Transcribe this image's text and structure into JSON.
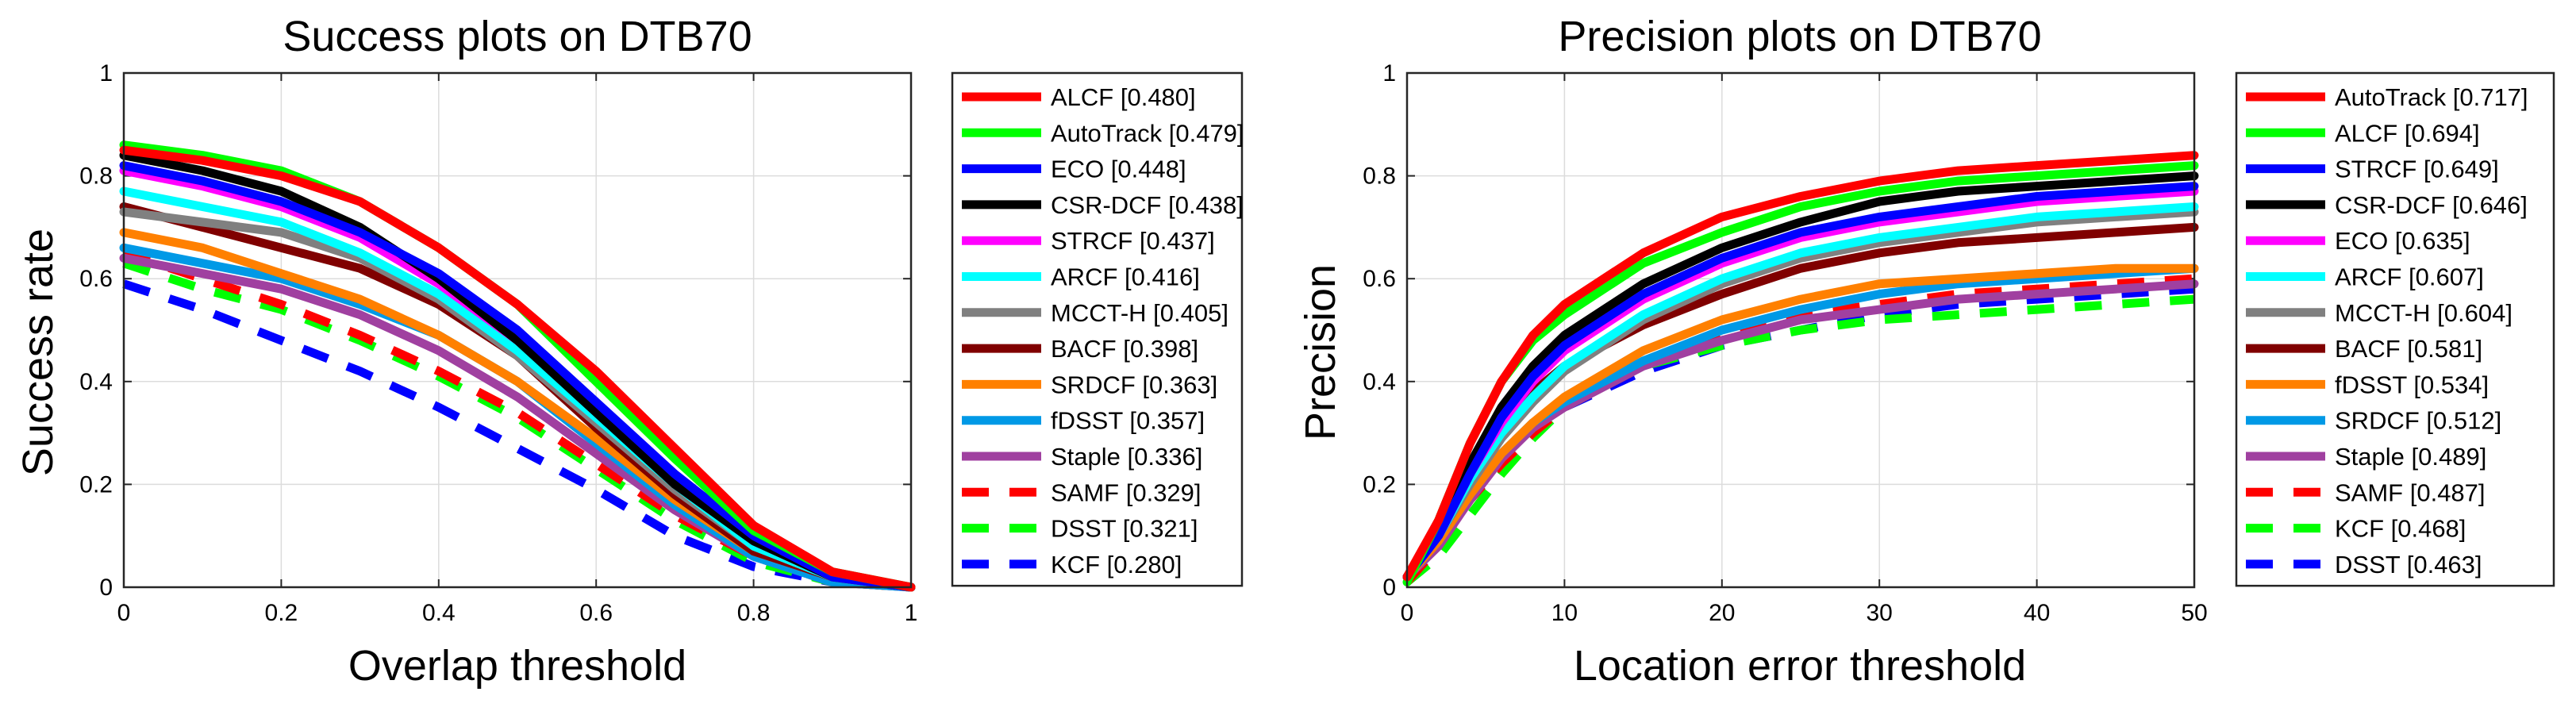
{
  "chart_data": [
    {
      "type": "line",
      "title": "Success plots on DTB70",
      "xlabel": "Overlap threshold",
      "ylabel": "Success rate",
      "xlim": [
        0,
        1
      ],
      "ylim": [
        0,
        1
      ],
      "xticks": [
        0,
        0.2,
        0.4,
        0.6,
        0.8,
        1
      ],
      "xtick_labels": [
        "0",
        "0.2",
        "0.4",
        "0.6",
        "0.8",
        "1"
      ],
      "yticks": [
        0,
        0.2,
        0.4,
        0.6,
        0.8,
        1
      ],
      "ytick_labels": [
        "0",
        "0.2",
        "0.4",
        "0.6",
        "0.8",
        "1"
      ],
      "grid": true,
      "legend_position": "outside-right",
      "x": [
        0,
        0.1,
        0.2,
        0.3,
        0.4,
        0.5,
        0.6,
        0.7,
        0.8,
        0.9,
        1.0
      ],
      "series": [
        {
          "name": "ALCF",
          "score": "0.480",
          "label": "ALCF [0.480]",
          "color": "#ff0000",
          "dash": "solid",
          "values": [
            0.85,
            0.83,
            0.8,
            0.75,
            0.66,
            0.55,
            0.42,
            0.27,
            0.12,
            0.03,
            0.0
          ]
        },
        {
          "name": "AutoTrack",
          "score": "0.479",
          "label": "AutoTrack [0.479]",
          "color": "#00ff00",
          "dash": "solid",
          "values": [
            0.86,
            0.84,
            0.81,
            0.75,
            0.66,
            0.55,
            0.4,
            0.25,
            0.11,
            0.03,
            0.0
          ]
        },
        {
          "name": "ECO",
          "score": "0.448",
          "label": "ECO [0.448]",
          "color": "#0000ff",
          "dash": "solid",
          "values": [
            0.82,
            0.79,
            0.75,
            0.69,
            0.61,
            0.5,
            0.36,
            0.22,
            0.1,
            0.02,
            0.0
          ]
        },
        {
          "name": "CSR-DCF",
          "score": "0.438",
          "label": "CSR-DCF [0.438]",
          "color": "#000000",
          "dash": "solid",
          "values": [
            0.84,
            0.81,
            0.77,
            0.7,
            0.6,
            0.48,
            0.34,
            0.2,
            0.09,
            0.02,
            0.0
          ]
        },
        {
          "name": "STRCF",
          "score": "0.437",
          "label": "STRCF [0.437]",
          "color": "#ff00ff",
          "dash": "solid",
          "values": [
            0.81,
            0.78,
            0.74,
            0.68,
            0.59,
            0.48,
            0.35,
            0.21,
            0.09,
            0.02,
            0.0
          ]
        },
        {
          "name": "ARCF",
          "score": "0.416",
          "label": "ARCF [0.416]",
          "color": "#00ffff",
          "dash": "solid",
          "values": [
            0.77,
            0.74,
            0.71,
            0.65,
            0.57,
            0.46,
            0.33,
            0.2,
            0.08,
            0.02,
            0.0
          ]
        },
        {
          "name": "MCCT-H",
          "score": "0.405",
          "label": "MCCT-H [0.405]",
          "color": "#808080",
          "dash": "solid",
          "values": [
            0.73,
            0.71,
            0.69,
            0.64,
            0.56,
            0.45,
            0.32,
            0.19,
            0.08,
            0.02,
            0.0
          ]
        },
        {
          "name": "BACF",
          "score": "0.398",
          "label": "BACF [0.398]",
          "color": "#800000",
          "dash": "solid",
          "values": [
            0.74,
            0.7,
            0.66,
            0.62,
            0.55,
            0.45,
            0.31,
            0.18,
            0.07,
            0.02,
            0.0
          ]
        },
        {
          "name": "SRDCF",
          "score": "0.363",
          "label": "SRDCF [0.363]",
          "color": "#ff8000",
          "dash": "solid",
          "values": [
            0.69,
            0.66,
            0.61,
            0.56,
            0.49,
            0.4,
            0.29,
            0.17,
            0.07,
            0.02,
            0.0
          ]
        },
        {
          "name": "fDSST",
          "score": "0.357",
          "label": "fDSST [0.357]",
          "color": "#0099e6",
          "dash": "solid",
          "values": [
            0.66,
            0.63,
            0.6,
            0.55,
            0.49,
            0.4,
            0.28,
            0.16,
            0.06,
            0.01,
            0.0
          ]
        },
        {
          "name": "Staple",
          "score": "0.336",
          "label": "Staple [0.336]",
          "color": "#a040a0",
          "dash": "solid",
          "values": [
            0.64,
            0.61,
            0.58,
            0.53,
            0.46,
            0.37,
            0.26,
            0.15,
            0.06,
            0.01,
            0.0
          ]
        },
        {
          "name": "SAMF",
          "score": "0.329",
          "label": "SAMF [0.329]",
          "color": "#ff0000",
          "dash": "dashed",
          "values": [
            0.65,
            0.6,
            0.55,
            0.49,
            0.42,
            0.34,
            0.24,
            0.14,
            0.06,
            0.01,
            0.0
          ]
        },
        {
          "name": "DSST",
          "score": "0.321",
          "label": "DSST [0.321]",
          "color": "#00ff00",
          "dash": "dashed",
          "values": [
            0.63,
            0.58,
            0.54,
            0.48,
            0.41,
            0.33,
            0.23,
            0.13,
            0.05,
            0.01,
            0.0
          ]
        },
        {
          "name": "KCF",
          "score": "0.280",
          "label": "KCF [0.280]",
          "color": "#0000ff",
          "dash": "dashed",
          "values": [
            0.59,
            0.54,
            0.48,
            0.42,
            0.35,
            0.27,
            0.19,
            0.1,
            0.04,
            0.01,
            0.0
          ]
        }
      ]
    },
    {
      "type": "line",
      "title": "Precision plots on DTB70",
      "xlabel": "Location error threshold",
      "ylabel": "Precision",
      "xlim": [
        0,
        50
      ],
      "ylim": [
        0,
        1
      ],
      "xticks": [
        0,
        10,
        20,
        30,
        40,
        50
      ],
      "xtick_labels": [
        "0",
        "10",
        "20",
        "30",
        "40",
        "50"
      ],
      "yticks": [
        0,
        0.2,
        0.4,
        0.6,
        0.8,
        1
      ],
      "ytick_labels": [
        "0",
        "0.2",
        "0.4",
        "0.6",
        "0.8",
        "1"
      ],
      "grid": true,
      "legend_position": "outside-right",
      "x": [
        0,
        2,
        4,
        6,
        8,
        10,
        15,
        20,
        25,
        30,
        35,
        40,
        45,
        50
      ],
      "series": [
        {
          "name": "AutoTrack",
          "score": "0.717",
          "label": "AutoTrack [0.717]",
          "color": "#ff0000",
          "dash": "solid",
          "values": [
            0.02,
            0.13,
            0.28,
            0.4,
            0.49,
            0.55,
            0.65,
            0.72,
            0.76,
            0.79,
            0.81,
            0.82,
            0.83,
            0.84
          ]
        },
        {
          "name": "ALCF",
          "score": "0.694",
          "label": "ALCF [0.694]",
          "color": "#00ff00",
          "dash": "solid",
          "values": [
            0.01,
            0.13,
            0.28,
            0.4,
            0.48,
            0.53,
            0.63,
            0.69,
            0.74,
            0.77,
            0.79,
            0.8,
            0.81,
            0.82
          ]
        },
        {
          "name": "STRCF",
          "score": "0.649",
          "label": "STRCF [0.649]",
          "color": "#0000ff",
          "dash": "solid",
          "values": [
            0.02,
            0.1,
            0.22,
            0.33,
            0.41,
            0.47,
            0.57,
            0.64,
            0.69,
            0.72,
            0.74,
            0.76,
            0.77,
            0.78
          ]
        },
        {
          "name": "CSR-DCF",
          "score": "0.646",
          "label": "CSR-DCF [0.646]",
          "color": "#000000",
          "dash": "solid",
          "values": [
            0.02,
            0.11,
            0.24,
            0.35,
            0.43,
            0.49,
            0.59,
            0.66,
            0.71,
            0.75,
            0.77,
            0.78,
            0.79,
            0.8
          ]
        },
        {
          "name": "ECO",
          "score": "0.635",
          "label": "ECO [0.635]",
          "color": "#ff00ff",
          "dash": "solid",
          "values": [
            0.02,
            0.1,
            0.22,
            0.32,
            0.4,
            0.46,
            0.56,
            0.63,
            0.68,
            0.71,
            0.73,
            0.75,
            0.76,
            0.77
          ]
        },
        {
          "name": "ARCF",
          "score": "0.607",
          "label": "ARCF [0.607]",
          "color": "#00ffff",
          "dash": "solid",
          "values": [
            0.02,
            0.1,
            0.21,
            0.3,
            0.37,
            0.43,
            0.53,
            0.6,
            0.65,
            0.68,
            0.7,
            0.72,
            0.73,
            0.74
          ]
        },
        {
          "name": "MCCT-H",
          "score": "0.604",
          "label": "MCCT-H [0.604]",
          "color": "#808080",
          "dash": "solid",
          "values": [
            0.02,
            0.1,
            0.2,
            0.29,
            0.36,
            0.42,
            0.52,
            0.59,
            0.64,
            0.67,
            0.69,
            0.71,
            0.72,
            0.73
          ]
        },
        {
          "name": "BACF",
          "score": "0.581",
          "label": "BACF [0.581]",
          "color": "#800000",
          "dash": "solid",
          "values": [
            0.02,
            0.11,
            0.22,
            0.31,
            0.38,
            0.43,
            0.51,
            0.57,
            0.62,
            0.65,
            0.67,
            0.68,
            0.69,
            0.7
          ]
        },
        {
          "name": "fDSST",
          "score": "0.534",
          "label": "fDSST [0.534]",
          "color": "#ff8000",
          "dash": "solid",
          "values": [
            0.02,
            0.09,
            0.18,
            0.26,
            0.32,
            0.37,
            0.46,
            0.52,
            0.56,
            0.59,
            0.6,
            0.61,
            0.62,
            0.62
          ]
        },
        {
          "name": "SRDCF",
          "score": "0.512",
          "label": "SRDCF [0.512]",
          "color": "#0099e6",
          "dash": "solid",
          "values": [
            0.02,
            0.09,
            0.18,
            0.26,
            0.32,
            0.36,
            0.44,
            0.5,
            0.54,
            0.57,
            0.59,
            0.6,
            0.61,
            0.62
          ]
        },
        {
          "name": "Staple",
          "score": "0.489",
          "label": "Staple [0.489]",
          "color": "#a040a0",
          "dash": "solid",
          "values": [
            0.02,
            0.08,
            0.17,
            0.25,
            0.31,
            0.35,
            0.43,
            0.48,
            0.52,
            0.54,
            0.56,
            0.57,
            0.58,
            0.59
          ]
        },
        {
          "name": "SAMF",
          "score": "0.487",
          "label": "SAMF [0.487]",
          "color": "#ff0000",
          "dash": "dashed",
          "values": [
            0.01,
            0.08,
            0.17,
            0.24,
            0.3,
            0.35,
            0.43,
            0.49,
            0.53,
            0.55,
            0.57,
            0.58,
            0.59,
            0.6
          ]
        },
        {
          "name": "KCF",
          "score": "0.468",
          "label": "KCF [0.468]",
          "color": "#00ff00",
          "dash": "dashed",
          "values": [
            0.01,
            0.06,
            0.14,
            0.22,
            0.29,
            0.35,
            0.43,
            0.47,
            0.5,
            0.52,
            0.53,
            0.54,
            0.55,
            0.56
          ]
        },
        {
          "name": "DSST",
          "score": "0.463",
          "label": "DSST [0.463]",
          "color": "#0000ff",
          "dash": "dashed",
          "values": [
            0.01,
            0.08,
            0.17,
            0.24,
            0.3,
            0.35,
            0.42,
            0.47,
            0.5,
            0.53,
            0.55,
            0.56,
            0.57,
            0.58
          ]
        }
      ]
    }
  ]
}
